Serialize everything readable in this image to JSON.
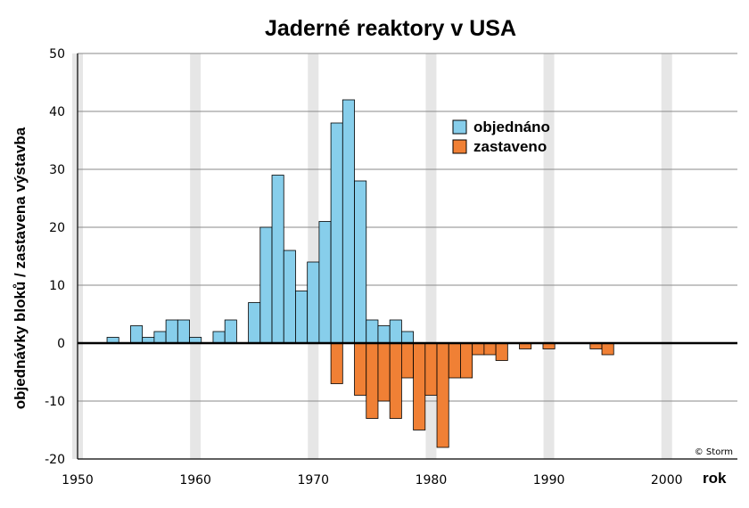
{
  "chart_data": {
    "type": "bar",
    "title": "Jaderné reaktory v USA",
    "xlabel": "rok",
    "ylabel": "objednávky bloků / zastavena výstavba",
    "xlim": [
      1950,
      2006
    ],
    "ylim": [
      -20,
      50
    ],
    "x_ticks": [
      1950,
      1960,
      1970,
      1980,
      1990,
      2000
    ],
    "y_ticks": [
      -20,
      -10,
      0,
      10,
      20,
      30,
      40,
      50
    ],
    "y_tick_labels": [
      "-20",
      "-10",
      "0",
      "10",
      "20",
      "30",
      "40",
      "50"
    ],
    "grid": "horizontal",
    "legend_position": "top-right",
    "series": [
      {
        "name": "objednáno",
        "color": "#87ceeb",
        "x": [
          1953,
          1955,
          1956,
          1957,
          1958,
          1959,
          1960,
          1962,
          1963,
          1965,
          1966,
          1967,
          1968,
          1969,
          1970,
          1971,
          1972,
          1973,
          1974,
          1975,
          1976,
          1977,
          1978
        ],
        "values": [
          1,
          3,
          1,
          2,
          4,
          4,
          1,
          2,
          4,
          7,
          20,
          29,
          16,
          9,
          14,
          21,
          38,
          42,
          28,
          4,
          3,
          4,
          2
        ]
      },
      {
        "name": "zastaveno",
        "color": "#f08035",
        "x": [
          1972,
          1974,
          1975,
          1976,
          1977,
          1978,
          1979,
          1980,
          1981,
          1982,
          1983,
          1984,
          1985,
          1986,
          1988,
          1990,
          1994,
          1995
        ],
        "values": [
          -7,
          -9,
          -13,
          -10,
          -13,
          -6,
          -15,
          -9,
          -18,
          -6,
          -6,
          -2,
          -2,
          -3,
          -1,
          -1,
          -1,
          -2
        ]
      }
    ],
    "credit": "© Storm"
  }
}
